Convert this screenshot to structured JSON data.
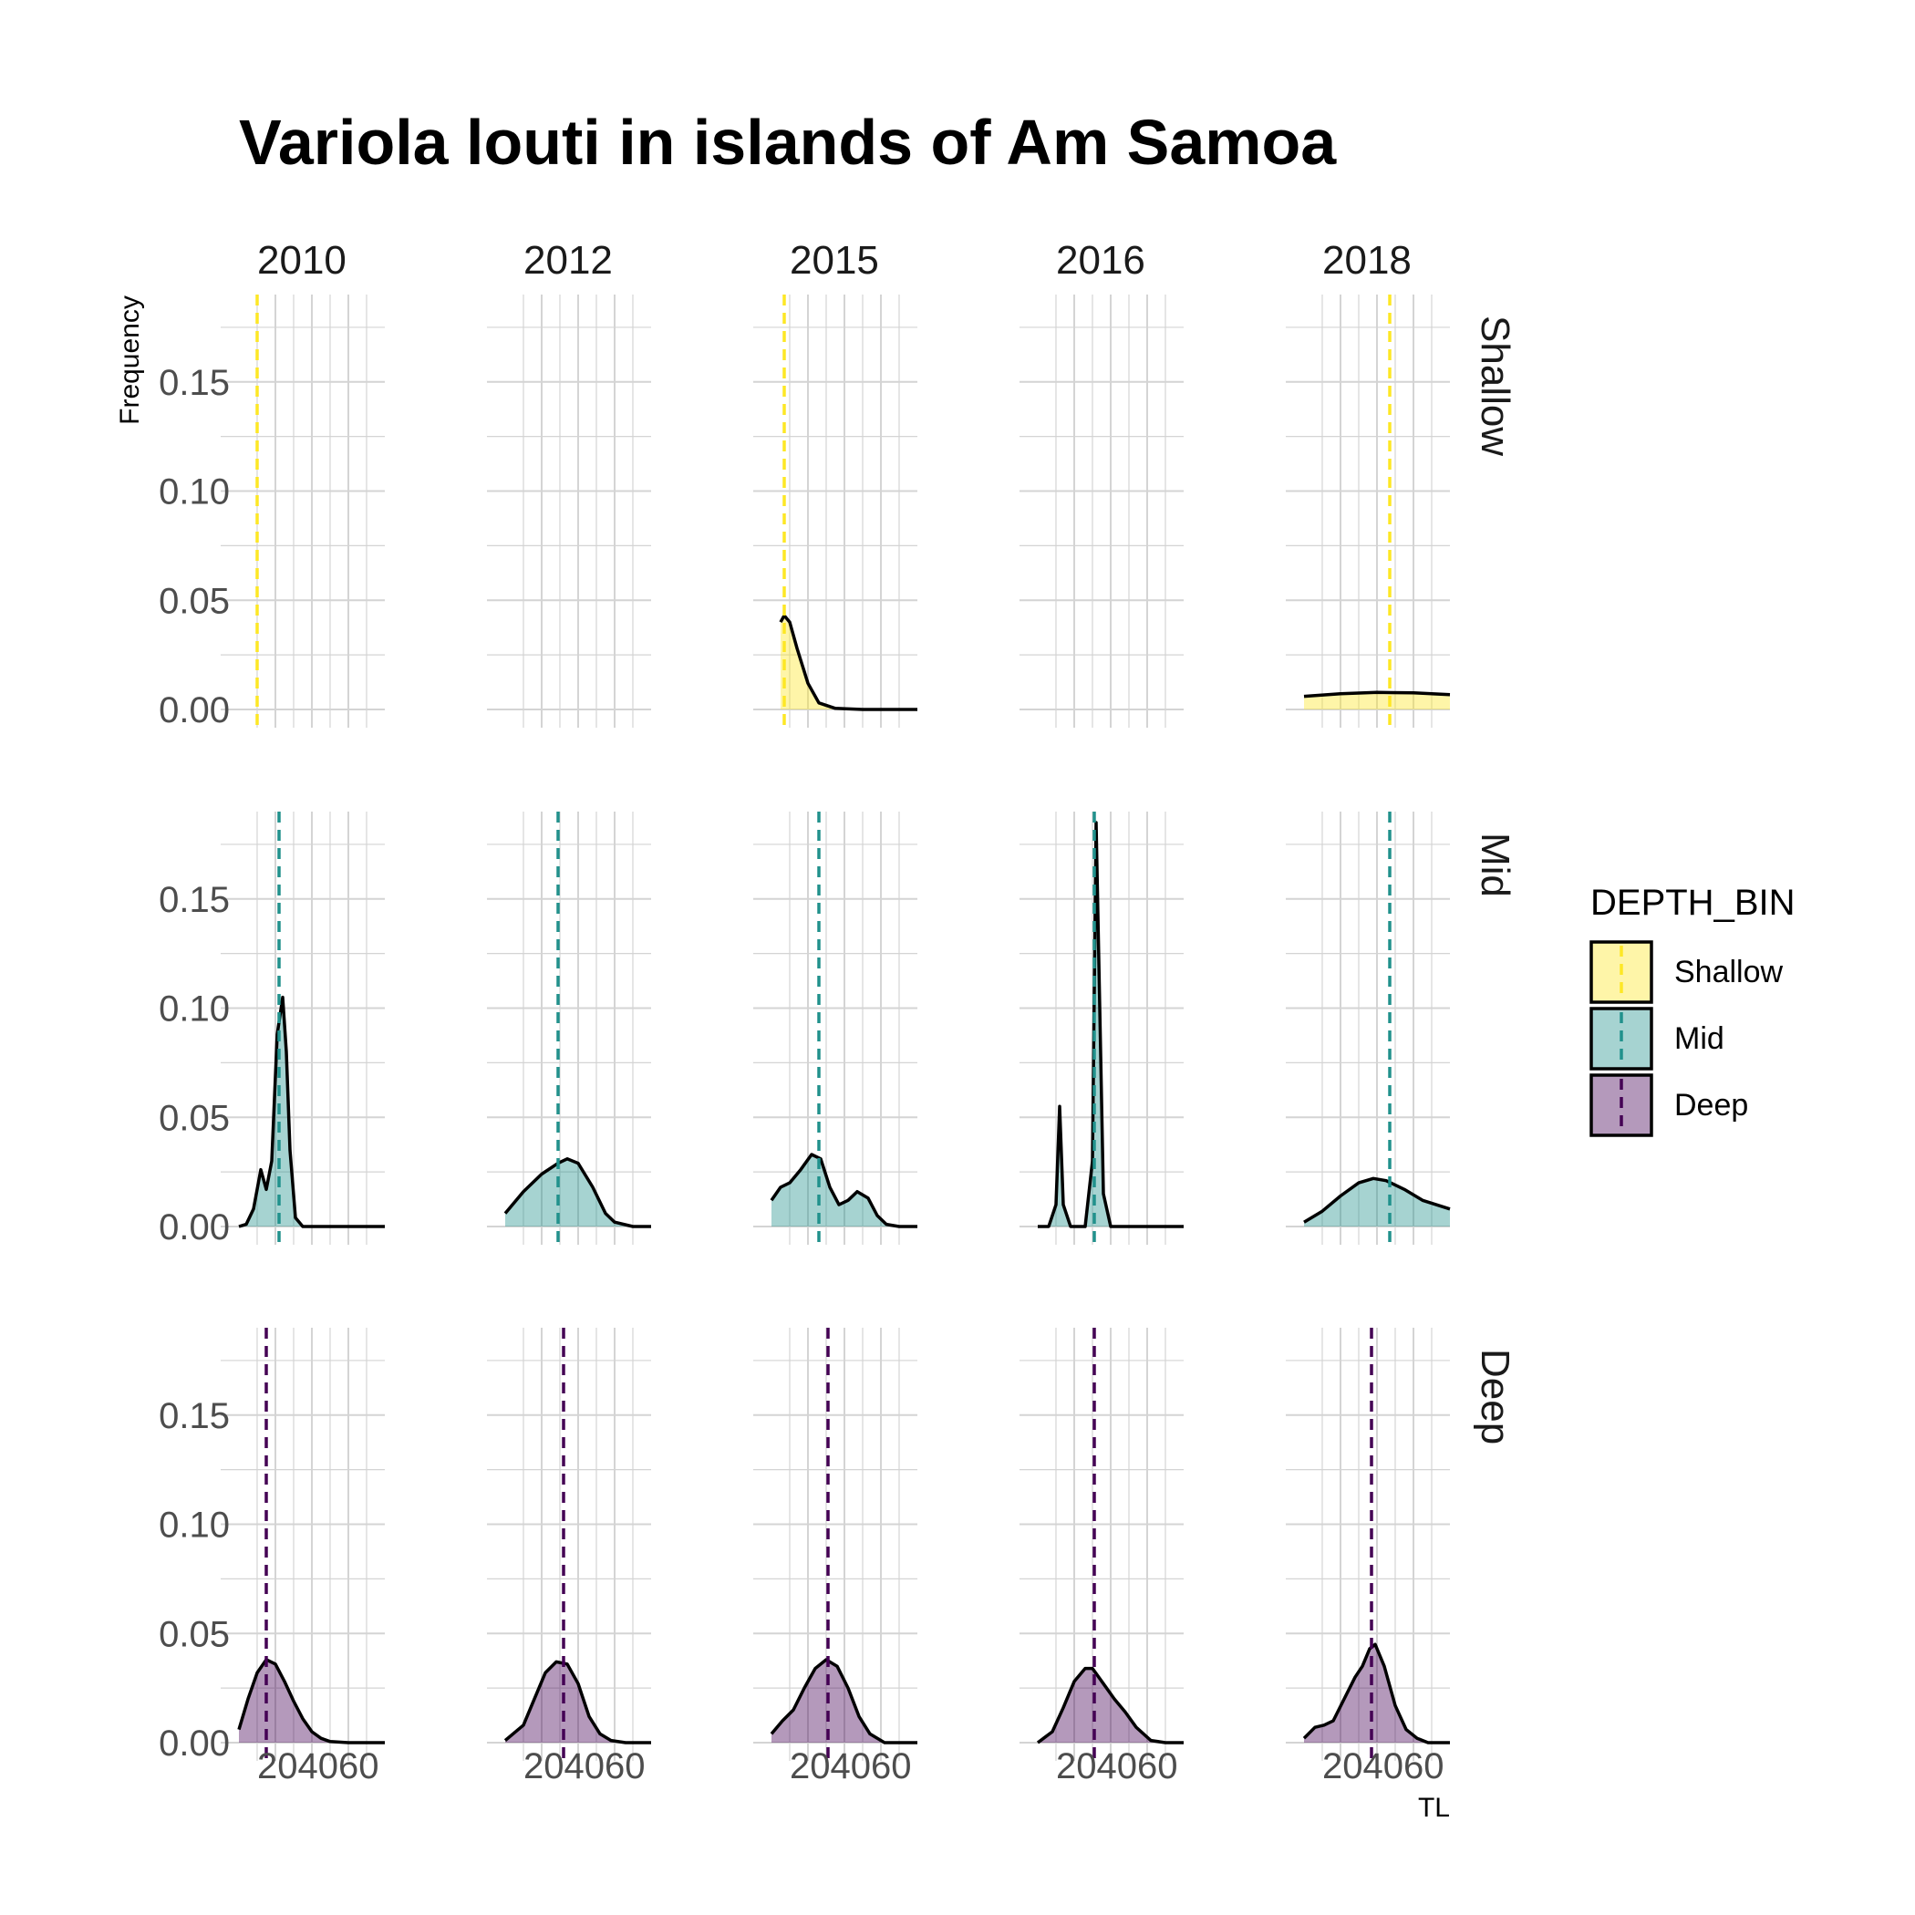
{
  "chart_data": {
    "type": "area",
    "title": "Variola louti in islands of Am Samoa",
    "xlabel": "TL",
    "ylabel": "Frequency",
    "facet_columns": [
      "2010",
      "2012",
      "2015",
      "2016",
      "2018"
    ],
    "facet_rows": [
      "Shallow",
      "Mid",
      "Deep"
    ],
    "xlim": [
      0,
      80
    ],
    "ylim": [
      0,
      0.19
    ],
    "x_ticks": [
      20,
      40,
      60
    ],
    "y_ticks": [
      0.0,
      0.05,
      0.1,
      0.15
    ],
    "y_tick_labels": [
      "0.00",
      "0.05",
      "0.10",
      "0.15"
    ],
    "grid": true,
    "legend": {
      "title": "DEPTH_BIN",
      "position": "right",
      "entries": [
        "Shallow",
        "Mid",
        "Deep"
      ]
    },
    "colors": {
      "Shallow": {
        "fill": "#FDE725",
        "line": "#FDE725"
      },
      "Mid": {
        "fill": "#21918C",
        "line": "#21918C"
      },
      "Deep": {
        "fill": "#440154",
        "line": "#440154"
      }
    },
    "panels": [
      {
        "row": "Shallow",
        "col": "2010",
        "mean": 10,
        "x": [],
        "y": []
      },
      {
        "row": "Shallow",
        "col": "2012",
        "x": [],
        "y": []
      },
      {
        "row": "Shallow",
        "col": "2015",
        "mean": 7,
        "x": [
          5,
          7,
          10,
          14,
          20,
          26,
          35,
          50,
          80
        ],
        "y": [
          0.04,
          0.043,
          0.04,
          0.028,
          0.012,
          0.003,
          0.0005,
          0.0,
          0.0
        ]
      },
      {
        "row": "Shallow",
        "col": "2016",
        "x": [],
        "y": []
      },
      {
        "row": "Shallow",
        "col": "2018",
        "mean": 47,
        "x": [
          0,
          20,
          40,
          60,
          80
        ],
        "y": [
          0.006,
          0.0072,
          0.0078,
          0.0076,
          0.0068
        ]
      },
      {
        "row": "Mid",
        "col": "2010",
        "mean": 22,
        "x": [
          0,
          4,
          8,
          12,
          15,
          18,
          21,
          24,
          26,
          28,
          31,
          35,
          45,
          80
        ],
        "y": [
          0.0,
          0.001,
          0.008,
          0.026,
          0.017,
          0.03,
          0.088,
          0.105,
          0.08,
          0.035,
          0.004,
          0.0,
          0.0,
          0.0
        ]
      },
      {
        "row": "Mid",
        "col": "2012",
        "mean": 29,
        "x": [
          0,
          10,
          20,
          29,
          34,
          40,
          48,
          55,
          60,
          70,
          80
        ],
        "y": [
          0.006,
          0.016,
          0.024,
          0.029,
          0.031,
          0.029,
          0.018,
          0.006,
          0.002,
          0.0,
          0.0
        ]
      },
      {
        "row": "Mid",
        "col": "2015",
        "mean": 26,
        "x": [
          0,
          5,
          10,
          16,
          22,
          27,
          32,
          37,
          42,
          47,
          53,
          58,
          63,
          70,
          80
        ],
        "y": [
          0.012,
          0.018,
          0.02,
          0.026,
          0.033,
          0.031,
          0.018,
          0.01,
          0.012,
          0.016,
          0.013,
          0.005,
          0.001,
          0.0,
          0.0
        ]
      },
      {
        "row": "Mid",
        "col": "2016",
        "mean": 31,
        "x": [
          0,
          6,
          10,
          12,
          14,
          18,
          26,
          30,
          32,
          34,
          36,
          40,
          50,
          80
        ],
        "y": [
          0.0,
          0.0,
          0.01,
          0.055,
          0.01,
          0.0,
          0.0,
          0.03,
          0.185,
          0.1,
          0.015,
          0.0,
          0.0,
          0.0
        ]
      },
      {
        "row": "Mid",
        "col": "2018",
        "mean": 47,
        "x": [
          0,
          10,
          20,
          30,
          38,
          45,
          55,
          65,
          80
        ],
        "y": [
          0.002,
          0.007,
          0.014,
          0.02,
          0.022,
          0.021,
          0.017,
          0.012,
          0.008
        ]
      },
      {
        "row": "Deep",
        "col": "2010",
        "mean": 15,
        "x": [
          0,
          5,
          10,
          15,
          20,
          25,
          30,
          35,
          40,
          45,
          50,
          60,
          80
        ],
        "y": [
          0.006,
          0.02,
          0.032,
          0.038,
          0.036,
          0.028,
          0.019,
          0.011,
          0.005,
          0.002,
          0.0005,
          0.0,
          0.0
        ]
      },
      {
        "row": "Deep",
        "col": "2012",
        "mean": 32,
        "x": [
          0,
          10,
          16,
          22,
          28,
          34,
          40,
          46,
          52,
          58,
          66,
          80
        ],
        "y": [
          0.001,
          0.008,
          0.02,
          0.032,
          0.037,
          0.036,
          0.027,
          0.012,
          0.004,
          0.001,
          0.0,
          0.0
        ]
      },
      {
        "row": "Deep",
        "col": "2015",
        "mean": 31,
        "x": [
          0,
          6,
          12,
          18,
          24,
          30,
          36,
          42,
          48,
          54,
          62,
          80
        ],
        "y": [
          0.004,
          0.01,
          0.015,
          0.025,
          0.034,
          0.038,
          0.035,
          0.025,
          0.012,
          0.004,
          0.0,
          0.0
        ]
      },
      {
        "row": "Deep",
        "col": "2016",
        "mean": 31,
        "x": [
          0,
          8,
          14,
          20,
          26,
          30,
          36,
          42,
          48,
          54,
          62,
          70,
          80
        ],
        "y": [
          0.0,
          0.005,
          0.016,
          0.028,
          0.034,
          0.034,
          0.027,
          0.02,
          0.014,
          0.007,
          0.001,
          0.0,
          0.0
        ]
      },
      {
        "row": "Deep",
        "col": "2018",
        "mean": 37,
        "x": [
          0,
          6,
          11,
          16,
          22,
          28,
          32,
          36,
          39,
          44,
          50,
          56,
          62,
          68,
          80
        ],
        "y": [
          0.002,
          0.007,
          0.008,
          0.01,
          0.02,
          0.03,
          0.035,
          0.043,
          0.045,
          0.035,
          0.017,
          0.006,
          0.002,
          0.0,
          0.0
        ]
      }
    ]
  }
}
